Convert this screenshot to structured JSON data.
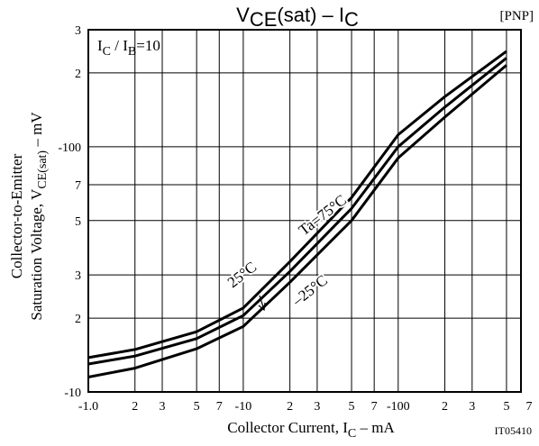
{
  "chart_data": {
    "type": "line",
    "title": [
      "V",
      "CE",
      "(sat)  –  I",
      "C"
    ],
    "tag": "[PNP]",
    "condition": [
      "I",
      "C",
      " / I",
      "B",
      "=10"
    ],
    "ylabel": [
      "Collector-to-Emitter",
      "Saturation Voltage, V",
      "CE(sat)",
      "  –  mV"
    ],
    "xlabel": [
      "Collector Current, I",
      "C",
      "  –  mA"
    ],
    "code": "IT05410",
    "log_x": true,
    "log_y": true,
    "grid": true,
    "x": [
      -1,
      -2,
      -5,
      -10,
      -20,
      -50,
      -100,
      -200,
      -500
    ],
    "series": [
      {
        "name": "Ta=75°C",
        "color": "#000000",
        "values": [
          -13.8,
          -14.9,
          -17.6,
          -22,
          -34,
          -62,
          -112,
          -160,
          -245
        ]
      },
      {
        "name": "25°C",
        "color": "#000000",
        "values": [
          -13,
          -14,
          -16.5,
          -20.5,
          -31,
          -56,
          -100,
          -145,
          -230
        ]
      },
      {
        "name": "–25°C",
        "color": "#000000",
        "values": [
          -11.5,
          -12.5,
          -15,
          -18.5,
          -28,
          -50,
          -90,
          -132,
          -215
        ]
      }
    ],
    "xlim": [
      -1,
      -620
    ],
    "xticks": [
      {
        "value": -1,
        "label": "-1.0"
      },
      {
        "value": -2,
        "label": "2"
      },
      {
        "value": -3,
        "label": "3"
      },
      {
        "value": -5,
        "label": "5"
      },
      {
        "value": -7,
        "label": "7"
      },
      -10,
      {
        "value": -20,
        "label": "2"
      },
      {
        "value": -30,
        "label": "3"
      },
      {
        "value": -50,
        "label": "5"
      },
      {
        "value": -70,
        "label": "7"
      },
      -100,
      {
        "value": -200,
        "label": "2"
      },
      {
        "value": -300,
        "label": "3"
      },
      {
        "value": -500,
        "label": "5"
      },
      {
        "value": -700,
        "label": "7"
      }
    ],
    "ylim": [
      -10,
      -300
    ],
    "yticks": [
      -10,
      {
        "value": -20,
        "label": "2"
      },
      {
        "value": -30,
        "label": "3"
      },
      {
        "value": -50,
        "label": "5"
      },
      {
        "value": -70,
        "label": "7"
      },
      -100,
      {
        "value": -200,
        "label": "2"
      },
      {
        "value": -300,
        "label": "3"
      }
    ]
  }
}
